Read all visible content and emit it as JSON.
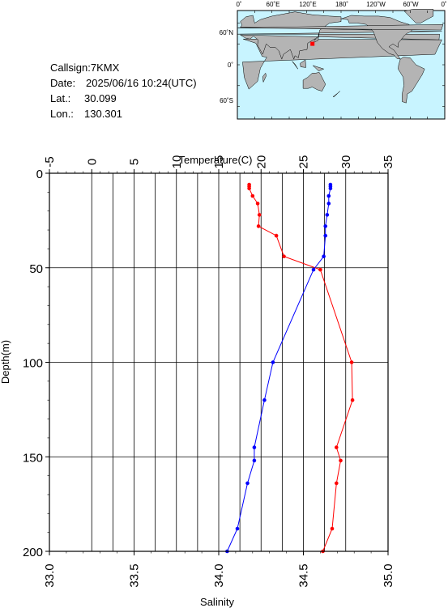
{
  "station": {
    "callsign_label": "Callsign:7KMX",
    "date_label": "Date:",
    "date_value": "2025/06/16 10:24(UTC)",
    "lat_label": "Lat.:",
    "lat_value": "30.099",
    "lon_label": "Lon.:",
    "lon_value": "130.301"
  },
  "map": {
    "top_ticks": [
      "0˚",
      "60˚E",
      "120˚E",
      "180˚",
      "120˚W",
      "60˚W",
      "0˚"
    ],
    "left_ticks": [
      "60˚N",
      "0˚",
      "60˚S"
    ],
    "ocean_color": "#c8f4ff",
    "land_color": "#b4b4b4",
    "marker_color": "#ff0000",
    "station_lon": 130.301,
    "station_lat": 30.099
  },
  "chart_data": {
    "type": "line",
    "title": "",
    "xlabel_top": "Temperature(C)",
    "xlabel_bottom": "Salinity",
    "ylabel": "Depth(m)",
    "temperature_ticks": [
      "-5",
      "0",
      "5",
      "10",
      "15",
      "20",
      "25",
      "30",
      "35"
    ],
    "salinity_ticks": [
      "33.0",
      "33.5",
      "34.0",
      "34.5",
      "35.0"
    ],
    "depth_ticks": [
      "0",
      "50",
      "100",
      "150",
      "200"
    ],
    "xlim_temperature": [
      -5,
      35
    ],
    "xlim_salinity": [
      33.0,
      35.0
    ],
    "ylim_depth": [
      200,
      0
    ],
    "grid": true,
    "series": [
      {
        "axis": "temperature",
        "color": "#ff0000",
        "depth": [
          6,
          7,
          8,
          12,
          16,
          22,
          28,
          33,
          44,
          51,
          100,
          120,
          145,
          152,
          164,
          188,
          200
        ],
        "values": [
          18.6,
          18.6,
          18.6,
          19.0,
          19.6,
          19.8,
          19.7,
          21.8,
          22.7,
          27.0,
          30.7,
          30.8,
          28.9,
          29.4,
          28.9,
          28.4,
          27.3
        ]
      },
      {
        "axis": "salinity",
        "color": "#0000ff",
        "depth": [
          6,
          7,
          8,
          12,
          16,
          22,
          28,
          33,
          44,
          51,
          100,
          120,
          145,
          152,
          164,
          188,
          200
        ],
        "values": [
          34.66,
          34.66,
          34.66,
          34.65,
          34.65,
          34.64,
          34.63,
          34.63,
          34.62,
          34.56,
          34.32,
          34.27,
          34.21,
          34.21,
          34.17,
          34.11,
          34.05
        ]
      }
    ]
  }
}
